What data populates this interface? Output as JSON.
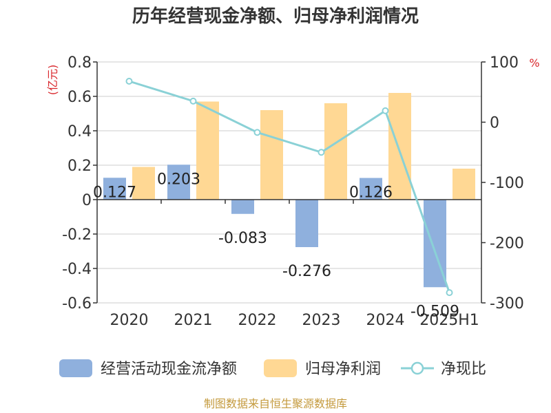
{
  "title": "历年经营现金净额、归母净利润情况",
  "source": "制图数据来自恒生聚源数据库",
  "chart_data": {
    "type": "bar",
    "categories": [
      "2020",
      "2021",
      "2022",
      "2023",
      "2024",
      "2025H1"
    ],
    "left_axis": {
      "unit": "(亿元)",
      "ylim": [
        -0.6,
        0.8
      ],
      "ticks": [
        "0.8",
        "0.6",
        "0.4",
        "0.2",
        "0",
        "-0.2",
        "-0.4",
        "-0.6"
      ]
    },
    "right_axis": {
      "unit": "%",
      "ylim": [
        -300,
        100
      ],
      "ticks": [
        "100",
        "0",
        "-100",
        "-200",
        "-300"
      ]
    },
    "series": [
      {
        "name": "经营活动现金流净额",
        "type": "bar",
        "axis": "left",
        "color": "#8fb0dd",
        "values": [
          0.127,
          0.203,
          -0.083,
          -0.276,
          0.126,
          -0.509
        ],
        "labels": [
          "0.127",
          "0.203",
          "-0.083",
          "-0.276",
          "0.126",
          "-0.509"
        ]
      },
      {
        "name": "归母净利润",
        "type": "bar",
        "axis": "left",
        "color": "#ffd894",
        "values": [
          0.19,
          0.57,
          0.52,
          0.56,
          0.62,
          0.18
        ]
      },
      {
        "name": "净现比",
        "type": "line",
        "axis": "right",
        "color": "#8ad1d6",
        "values": [
          68,
          35,
          -17,
          -50,
          19,
          -283
        ]
      }
    ],
    "grid": true,
    "legend_position": "bottom"
  }
}
